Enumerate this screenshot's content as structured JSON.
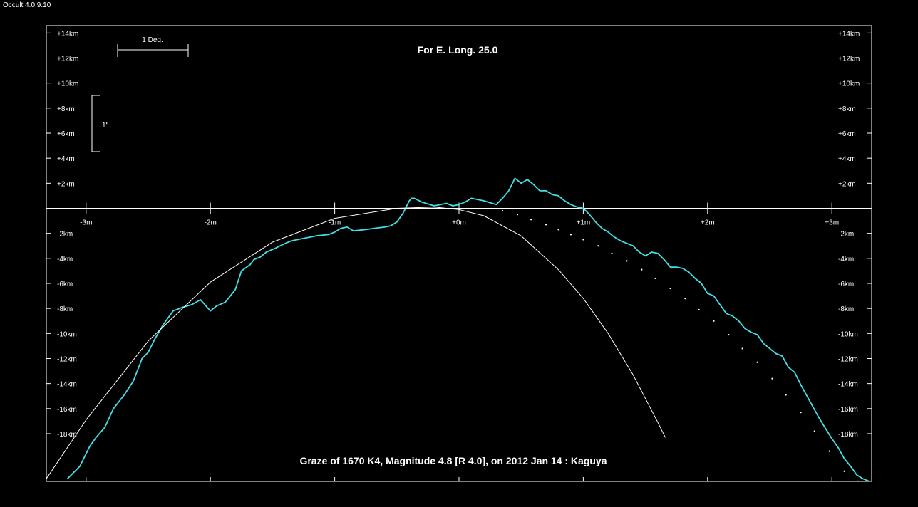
{
  "app": {
    "title": "Occult 4.0.9.10"
  },
  "chart_data": {
    "type": "line",
    "title": "Graze of  1670 K4,  Magnitude 4.8 [R 4.0],  on 2012 Jan 14  :  Kaguya",
    "subtitle": "For E. Long. 25.0",
    "scale_bars": {
      "horizontal_label": "1 Deg.",
      "vertical_label": "1\""
    },
    "x_axis": {
      "unit": "m",
      "range": [
        -3.32,
        3.32
      ],
      "ticks": [
        {
          "value": -3,
          "label": "-3m"
        },
        {
          "value": -2,
          "label": "-2m"
        },
        {
          "value": -1,
          "label": "-1m"
        },
        {
          "value": 0,
          "label": "+0m"
        },
        {
          "value": 1,
          "label": "+1m"
        },
        {
          "value": 2,
          "label": "+2m"
        },
        {
          "value": 3,
          "label": "+3m"
        }
      ]
    },
    "y_axis": {
      "unit": "km",
      "range": [
        -21.8,
        14.6
      ],
      "ticks": [
        {
          "value": 14,
          "label": "+14km"
        },
        {
          "value": 12,
          "label": "+12km"
        },
        {
          "value": 10,
          "label": "+10km"
        },
        {
          "value": 8,
          "label": "+8km"
        },
        {
          "value": 6,
          "label": "+6km"
        },
        {
          "value": 4,
          "label": "+4km"
        },
        {
          "value": 2,
          "label": "+2km"
        },
        {
          "value": -2,
          "label": "-2km"
        },
        {
          "value": -4,
          "label": "-4km"
        },
        {
          "value": -6,
          "label": "-6km"
        },
        {
          "value": -8,
          "label": "-8km"
        },
        {
          "value": -10,
          "label": "-10km"
        },
        {
          "value": -12,
          "label": "-12km"
        },
        {
          "value": -14,
          "label": "-14km"
        },
        {
          "value": -16,
          "label": "-16km"
        },
        {
          "value": -18,
          "label": "-18km"
        }
      ]
    },
    "series": [
      {
        "type": "line",
        "color": "#3fe0e6",
        "x": [
          -3.15,
          -3.05,
          -2.97,
          -2.92,
          -2.85,
          -2.78,
          -2.7,
          -2.62,
          -2.55,
          -2.5,
          -2.45,
          -2.38,
          -2.3,
          -2.22,
          -2.15,
          -2.08,
          -2.0,
          -1.95,
          -1.88,
          -1.8,
          -1.75,
          -1.68,
          -1.65,
          -1.6,
          -1.55,
          -1.48,
          -1.42,
          -1.35,
          -1.25,
          -1.15,
          -1.05,
          -1.0,
          -0.95,
          -0.9,
          -0.85,
          -0.75,
          -0.68,
          -0.6,
          -0.55,
          -0.5,
          -0.45,
          -0.4,
          -0.38,
          -0.36,
          -0.3,
          -0.2,
          -0.1,
          -0.05,
          0.0,
          0.05,
          0.1,
          0.2,
          0.3,
          0.35,
          0.4,
          0.45,
          0.5,
          0.55,
          0.6,
          0.65,
          0.7,
          0.75,
          0.8,
          0.85,
          0.9,
          0.95,
          1.0,
          1.05,
          1.1,
          1.15,
          1.2,
          1.25,
          1.3,
          1.35,
          1.4,
          1.45,
          1.5,
          1.55,
          1.6,
          1.65,
          1.7,
          1.75,
          1.8,
          1.85,
          1.9,
          1.95,
          2.0,
          2.05,
          2.1,
          2.15,
          2.2,
          2.25,
          2.3,
          2.35,
          2.4,
          2.45,
          2.5,
          2.55,
          2.6,
          2.65,
          2.7,
          2.75,
          2.8,
          2.85,
          2.9,
          2.95,
          3.0,
          3.05,
          3.1,
          3.15,
          3.2,
          3.25,
          3.3
        ],
        "y": [
          -21.6,
          -20.6,
          -19.0,
          -18.3,
          -17.5,
          -16.0,
          -15.0,
          -13.8,
          -12.0,
          -11.5,
          -10.5,
          -9.3,
          -8.2,
          -7.9,
          -7.7,
          -7.3,
          -8.2,
          -7.8,
          -7.5,
          -6.5,
          -5.0,
          -4.5,
          -4.1,
          -3.9,
          -3.5,
          -3.2,
          -2.9,
          -2.6,
          -2.4,
          -2.2,
          -2.1,
          -1.9,
          -1.6,
          -1.5,
          -1.8,
          -1.7,
          -1.6,
          -1.5,
          -1.4,
          -1.1,
          -0.4,
          0.6,
          0.8,
          0.8,
          0.5,
          0.2,
          0.4,
          0.2,
          0.3,
          0.5,
          0.8,
          0.6,
          0.3,
          0.8,
          1.4,
          2.4,
          2.0,
          2.3,
          1.9,
          1.4,
          1.4,
          1.1,
          1.0,
          0.6,
          0.3,
          0.1,
          0.0,
          -0.5,
          -1.1,
          -1.6,
          -1.9,
          -2.3,
          -2.6,
          -2.8,
          -3.0,
          -3.5,
          -3.8,
          -3.5,
          -3.6,
          -4.1,
          -4.7,
          -4.7,
          -4.8,
          -5.1,
          -5.6,
          -6.0,
          -6.8,
          -7.0,
          -7.7,
          -8.4,
          -8.6,
          -9.0,
          -9.6,
          -9.9,
          -10.1,
          -10.8,
          -11.2,
          -11.6,
          -11.8,
          -12.7,
          -13.1,
          -14.1,
          -15.0,
          -15.9,
          -16.8,
          -17.6,
          -18.4,
          -19.1,
          -20.0,
          -20.6,
          -21.3,
          -21.6,
          -21.8
        ]
      },
      {
        "type": "line",
        "color": "#ffffff",
        "x": [
          -3.32,
          -3.0,
          -2.5,
          -2.0,
          -1.5,
          -1.0,
          -0.5,
          -0.2,
          0.0,
          0.2,
          0.5,
          0.8,
          1.0,
          1.2,
          1.4,
          1.6,
          1.66
        ],
        "y": [
          -21.6,
          -16.9,
          -10.6,
          -5.9,
          -2.7,
          -0.8,
          0.0,
          0.1,
          -0.1,
          -0.6,
          -2.2,
          -4.9,
          -7.2,
          -10.0,
          -13.3,
          -17.1,
          -18.3
        ]
      },
      {
        "type": "scatter",
        "color": "#ffffff",
        "x": [
          0.35,
          0.47,
          0.58,
          0.7,
          0.8,
          0.9,
          1.0,
          1.12,
          1.23,
          1.35,
          1.47,
          1.58,
          1.7,
          1.82,
          1.93,
          2.05,
          2.17,
          2.28,
          2.4,
          2.52,
          2.63,
          2.75,
          2.86,
          2.98,
          3.1,
          3.21
        ],
        "y": [
          -0.2,
          -0.5,
          -0.9,
          -1.3,
          -1.7,
          -2.1,
          -2.5,
          -3.0,
          -3.6,
          -4.2,
          -4.9,
          -5.6,
          -6.4,
          -7.2,
          -8.1,
          -9.0,
          -10.1,
          -11.2,
          -12.3,
          -13.6,
          -14.9,
          -16.3,
          -17.8,
          -19.4,
          -21.0,
          -21.8
        ]
      }
    ]
  }
}
